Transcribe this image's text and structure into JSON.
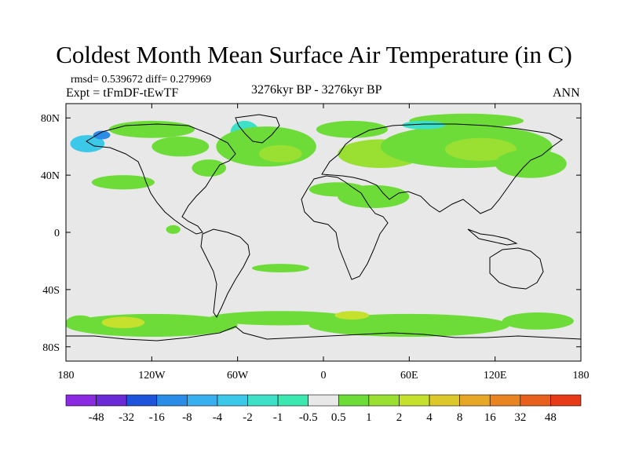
{
  "title": "Coldest Month Mean Surface Air Temperature (in C)",
  "stats_line": "rmsd= 0.539672  diff= 0.279969",
  "experiment_line": "Expt = tFmDF-tEwTF",
  "period_line": "3276kyr BP - 3276kyr BP",
  "season_label": "ANN",
  "map": {
    "lon_range": [
      -180,
      180
    ],
    "lat_range": [
      -90,
      90
    ],
    "background_color": "#e8e8e8",
    "x_ticks": [
      {
        "lon": -180,
        "label": "180"
      },
      {
        "lon": -120,
        "label": "120W"
      },
      {
        "lon": -60,
        "label": "60W"
      },
      {
        "lon": 0,
        "label": "0"
      },
      {
        "lon": 60,
        "label": "60E"
      },
      {
        "lon": 120,
        "label": "120E"
      },
      {
        "lon": 180,
        "label": "180"
      }
    ],
    "y_ticks": [
      {
        "lat": 80,
        "label": "80N"
      },
      {
        "lat": 40,
        "label": "40N"
      },
      {
        "lat": 0,
        "label": "0"
      },
      {
        "lat": -40,
        "label": "40S"
      },
      {
        "lat": -80,
        "label": "80S"
      }
    ]
  },
  "colorbar": {
    "colors": [
      "#8a2be2",
      "#6a2ad6",
      "#1e54d9",
      "#2a8ce6",
      "#38b0f0",
      "#3cc8e8",
      "#3ee0c8",
      "#3ae8b0",
      "#e8e8e8",
      "#6edc38",
      "#9ae032",
      "#c6e02e",
      "#dcc82a",
      "#e6a826",
      "#e88422",
      "#e8601e",
      "#e63a18"
    ],
    "labels": [
      "-48",
      "-32",
      "-16",
      "-8",
      "-4",
      "-2",
      "-1",
      "-0.5",
      "0.5",
      "1",
      "2",
      "4",
      "8",
      "16",
      "32",
      "48"
    ]
  },
  "anomaly_blobs": [
    {
      "lon": -165,
      "lat": 62,
      "rlon": 12,
      "rlat": 6,
      "color": "#3cc8e8"
    },
    {
      "lon": -155,
      "lat": 68,
      "rlon": 6,
      "rlat": 3,
      "color": "#2a8ce6"
    },
    {
      "lon": -120,
      "lat": 72,
      "rlon": 30,
      "rlat": 6,
      "color": "#6edc38"
    },
    {
      "lon": -100,
      "lat": 60,
      "rlon": 20,
      "rlat": 7,
      "color": "#6edc38"
    },
    {
      "lon": -140,
      "lat": 35,
      "rlon": 22,
      "rlat": 5,
      "color": "#6edc38"
    },
    {
      "lon": -55,
      "lat": 70,
      "rlon": 10,
      "rlat": 8,
      "color": "#3ee0c8"
    },
    {
      "lon": -40,
      "lat": 60,
      "rlon": 35,
      "rlat": 14,
      "color": "#6edc38"
    },
    {
      "lon": -30,
      "lat": 55,
      "rlon": 15,
      "rlat": 6,
      "color": "#9ae032"
    },
    {
      "lon": -80,
      "lat": 45,
      "rlon": 12,
      "rlat": 6,
      "color": "#6edc38"
    },
    {
      "lon": 20,
      "lat": 72,
      "rlon": 25,
      "rlat": 6,
      "color": "#6edc38"
    },
    {
      "lon": 40,
      "lat": 55,
      "rlon": 30,
      "rlat": 10,
      "color": "#9ae032"
    },
    {
      "lon": 100,
      "lat": 60,
      "rlon": 60,
      "rlat": 15,
      "color": "#6edc38"
    },
    {
      "lon": 110,
      "lat": 58,
      "rlon": 25,
      "rlat": 8,
      "color": "#9ae032"
    },
    {
      "lon": 145,
      "lat": 48,
      "rlon": 25,
      "rlat": 10,
      "color": "#6edc38"
    },
    {
      "lon": 35,
      "lat": 25,
      "rlon": 25,
      "rlat": 8,
      "color": "#6edc38"
    },
    {
      "lon": 10,
      "lat": 30,
      "rlon": 20,
      "rlat": 5,
      "color": "#6edc38"
    },
    {
      "lon": 100,
      "lat": 78,
      "rlon": 40,
      "rlat": 5,
      "color": "#6edc38"
    },
    {
      "lon": 70,
      "lat": 75,
      "rlon": 15,
      "rlat": 3,
      "color": "#3ee0c8"
    },
    {
      "lon": -30,
      "lat": -60,
      "rlon": 50,
      "rlat": 5,
      "color": "#6edc38"
    },
    {
      "lon": -120,
      "lat": -65,
      "rlon": 60,
      "rlat": 8,
      "color": "#6edc38"
    },
    {
      "lon": -140,
      "lat": -63,
      "rlon": 15,
      "rlat": 4,
      "color": "#c6e02e"
    },
    {
      "lon": 60,
      "lat": -65,
      "rlon": 70,
      "rlat": 8,
      "color": "#6edc38"
    },
    {
      "lon": 20,
      "lat": -58,
      "rlon": 12,
      "rlat": 3,
      "color": "#c6e02e"
    },
    {
      "lon": 150,
      "lat": -62,
      "rlon": 25,
      "rlat": 6,
      "color": "#6edc38"
    },
    {
      "lon": -170,
      "lat": -63,
      "rlon": 10,
      "rlat": 5,
      "color": "#6edc38"
    },
    {
      "lon": -30,
      "lat": -25,
      "rlon": 20,
      "rlat": 3,
      "color": "#6edc38"
    },
    {
      "lon": -105,
      "lat": 2,
      "rlon": 5,
      "rlat": 3,
      "color": "#6edc38"
    }
  ]
}
